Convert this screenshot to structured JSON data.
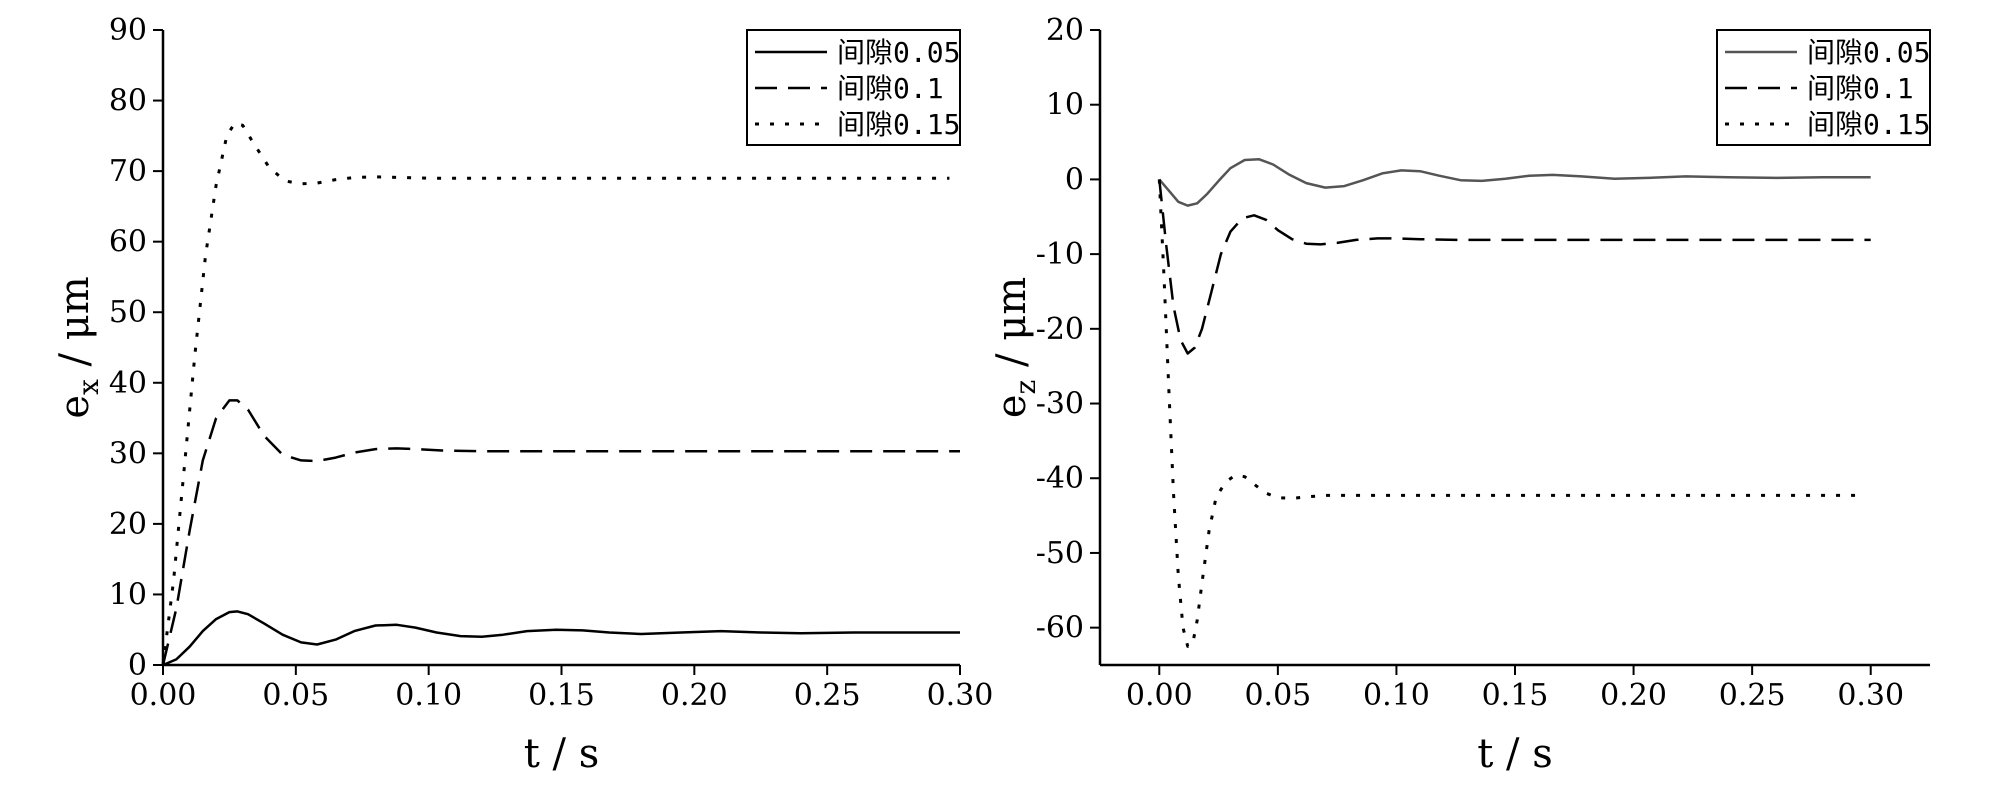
{
  "chart_data": [
    {
      "type": "line",
      "xlabel": "t / s",
      "ylabel_main": "e",
      "ylabel_sub": "x",
      "ylabel_unit": " / μm",
      "xlim": [
        0,
        0.3
      ],
      "ylim": [
        0,
        90
      ],
      "xticks": [
        0,
        0.05,
        0.1,
        0.15,
        0.2,
        0.25,
        0.3
      ],
      "xtick_labels": [
        "0.00",
        "0.05",
        "0.10",
        "0.15",
        "0.20",
        "0.25",
        "0.30"
      ],
      "yticks": [
        0,
        10,
        20,
        30,
        40,
        50,
        60,
        70,
        80,
        90
      ],
      "ytick_labels": [
        "0",
        "10",
        "20",
        "30",
        "40",
        "50",
        "60",
        "70",
        "80",
        "90"
      ],
      "legend_position": "top-right",
      "grid": false,
      "series": [
        {
          "name": "间隙0.05",
          "style": "solid",
          "color": "#000000",
          "x": [
            0,
            0.005,
            0.01,
            0.015,
            0.02,
            0.025,
            0.028,
            0.032,
            0.038,
            0.045,
            0.052,
            0.058,
            0.065,
            0.072,
            0.08,
            0.088,
            0.095,
            0.103,
            0.112,
            0.12,
            0.128,
            0.137,
            0.148,
            0.158,
            0.168,
            0.18,
            0.195,
            0.21,
            0.225,
            0.24,
            0.26,
            0.28,
            0.3
          ],
          "y": [
            0,
            0.8,
            2.6,
            4.8,
            6.5,
            7.5,
            7.6,
            7.2,
            5.9,
            4.3,
            3.2,
            2.9,
            3.6,
            4.8,
            5.6,
            5.7,
            5.3,
            4.6,
            4.1,
            4.0,
            4.3,
            4.8,
            5.0,
            4.9,
            4.6,
            4.4,
            4.6,
            4.8,
            4.6,
            4.5,
            4.6,
            4.6,
            4.6
          ]
        },
        {
          "name": "间隙0.1",
          "style": "dashed",
          "color": "#000000",
          "x": [
            0,
            0.005,
            0.01,
            0.015,
            0.02,
            0.025,
            0.028,
            0.032,
            0.038,
            0.045,
            0.052,
            0.058,
            0.065,
            0.072,
            0.08,
            0.088,
            0.095,
            0.105,
            0.12,
            0.14,
            0.17,
            0.2,
            0.25,
            0.3
          ],
          "y": [
            0,
            8,
            19,
            29,
            35,
            37.5,
            37.5,
            36.2,
            32.5,
            29.8,
            29.0,
            28.9,
            29.4,
            30.1,
            30.6,
            30.7,
            30.6,
            30.4,
            30.3,
            30.3,
            30.3,
            30.3,
            30.3,
            30.3
          ]
        },
        {
          "name": "间隙0.15",
          "style": "dotted",
          "color": "#000000",
          "x": [
            0,
            0.004,
            0.008,
            0.012,
            0.016,
            0.02,
            0.024,
            0.027,
            0.03,
            0.034,
            0.04,
            0.046,
            0.052,
            0.058,
            0.065,
            0.072,
            0.08,
            0.09,
            0.1,
            0.12,
            0.15,
            0.2,
            0.25,
            0.296
          ],
          "y": [
            0,
            12,
            28,
            44,
            58,
            68,
            75,
            76.8,
            76.5,
            74,
            70.5,
            68.6,
            68.2,
            68.3,
            68.8,
            69.1,
            69.2,
            69.1,
            69.0,
            69.0,
            69.0,
            69.0,
            69.0,
            69.0
          ]
        }
      ]
    },
    {
      "type": "line",
      "xlabel": "t / s",
      "ylabel_main": "e",
      "ylabel_sub": "z",
      "ylabel_unit": " / μm",
      "xlim": [
        -0.025,
        0.325
      ],
      "ylim": [
        -65,
        20
      ],
      "xticks": [
        0,
        0.05,
        0.1,
        0.15,
        0.2,
        0.25,
        0.3
      ],
      "xtick_labels": [
        "0.00",
        "0.05",
        "0.10",
        "0.15",
        "0.20",
        "0.25",
        "0.30"
      ],
      "yticks": [
        -60,
        -50,
        -40,
        -30,
        -20,
        -10,
        0,
        10,
        20
      ],
      "ytick_labels": [
        "-60",
        "-50",
        "-40",
        "-30",
        "-20",
        "-10",
        "0",
        "10",
        "20"
      ],
      "legend_position": "top-right",
      "grid": false,
      "series": [
        {
          "name": "间隙0.05",
          "style": "solid",
          "color": "#555555",
          "x": [
            0,
            0.004,
            0.008,
            0.012,
            0.016,
            0.02,
            0.025,
            0.03,
            0.036,
            0.042,
            0.048,
            0.055,
            0.062,
            0.07,
            0.078,
            0.086,
            0.094,
            0.102,
            0.11,
            0.118,
            0.127,
            0.136,
            0.146,
            0.156,
            0.166,
            0.178,
            0.192,
            0.206,
            0.222,
            0.24,
            0.26,
            0.28,
            0.3
          ],
          "y": [
            0,
            -1.5,
            -3.0,
            -3.5,
            -3.2,
            -2.0,
            -0.2,
            1.5,
            2.6,
            2.7,
            2.0,
            0.6,
            -0.5,
            -1.1,
            -0.9,
            -0.1,
            0.8,
            1.2,
            1.1,
            0.5,
            -0.1,
            -0.2,
            0.1,
            0.5,
            0.6,
            0.4,
            0.1,
            0.2,
            0.4,
            0.3,
            0.2,
            0.3,
            0.3
          ]
        },
        {
          "name": "间隙0.1",
          "style": "dashed",
          "color": "#000000",
          "x": [
            0,
            0.003,
            0.006,
            0.009,
            0.012,
            0.015,
            0.018,
            0.022,
            0.026,
            0.03,
            0.035,
            0.04,
            0.045,
            0.05,
            0.056,
            0.062,
            0.068,
            0.075,
            0.083,
            0.092,
            0.1,
            0.11,
            0.125,
            0.15,
            0.2,
            0.25,
            0.3
          ],
          "y": [
            0,
            -9,
            -17,
            -21.5,
            -23.3,
            -22.5,
            -20,
            -15,
            -10,
            -7,
            -5.2,
            -4.8,
            -5.4,
            -6.8,
            -8.0,
            -8.6,
            -8.7,
            -8.5,
            -8.1,
            -7.9,
            -7.9,
            -8.0,
            -8.1,
            -8.1,
            -8.1,
            -8.1,
            -8.1
          ]
        },
        {
          "name": "间隙0.15",
          "style": "dotted",
          "color": "#000000",
          "x": [
            0,
            0.002,
            0.004,
            0.006,
            0.008,
            0.01,
            0.012,
            0.014,
            0.016,
            0.018,
            0.021,
            0.024,
            0.028,
            0.032,
            0.036,
            0.04,
            0.045,
            0.05,
            0.056,
            0.062,
            0.07,
            0.08,
            0.095,
            0.12,
            0.16,
            0.2,
            0.25,
            0.294
          ],
          "y": [
            0,
            -13,
            -28,
            -42,
            -53,
            -60,
            -62.5,
            -62.3,
            -59,
            -54,
            -47,
            -42.5,
            -40.5,
            -39.6,
            -39.8,
            -40.8,
            -42,
            -42.6,
            -42.7,
            -42.5,
            -42.3,
            -42.3,
            -42.3,
            -42.3,
            -42.3,
            -42.3,
            -42.3,
            -42.3
          ]
        }
      ]
    }
  ]
}
